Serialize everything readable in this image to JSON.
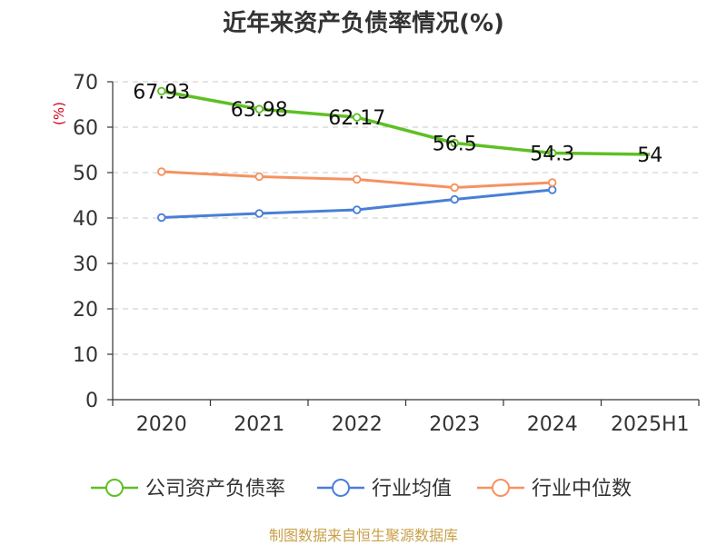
{
  "chart_data": {
    "type": "line",
    "title": "近年来资产负债率情况(%)",
    "ylabel": "(%)",
    "xlabel": "",
    "categories": [
      "2020",
      "2021",
      "2022",
      "2023",
      "2024",
      "2025H1"
    ],
    "ylim": [
      0,
      70
    ],
    "yticks": [
      0,
      10,
      20,
      30,
      40,
      50,
      60,
      70
    ],
    "grid": true,
    "legend_position": "bottom",
    "series": [
      {
        "name": "公司资产负债率",
        "color": "#5ec023",
        "values": [
          67.93,
          63.98,
          62.17,
          56.5,
          54.3,
          54
        ],
        "labels": [
          "67.93",
          "63.98",
          "62.17",
          "56.5",
          "54.3",
          "54"
        ]
      },
      {
        "name": "行业均值",
        "color": "#4a7fd6",
        "values": [
          40.1,
          41.0,
          41.8,
          44.1,
          46.2,
          null
        ]
      },
      {
        "name": "行业中位数",
        "color": "#f59261",
        "values": [
          50.2,
          49.1,
          48.5,
          46.7,
          47.8,
          null
        ]
      }
    ]
  },
  "footer": {
    "source": "制图数据来自恒生聚源数据库"
  }
}
